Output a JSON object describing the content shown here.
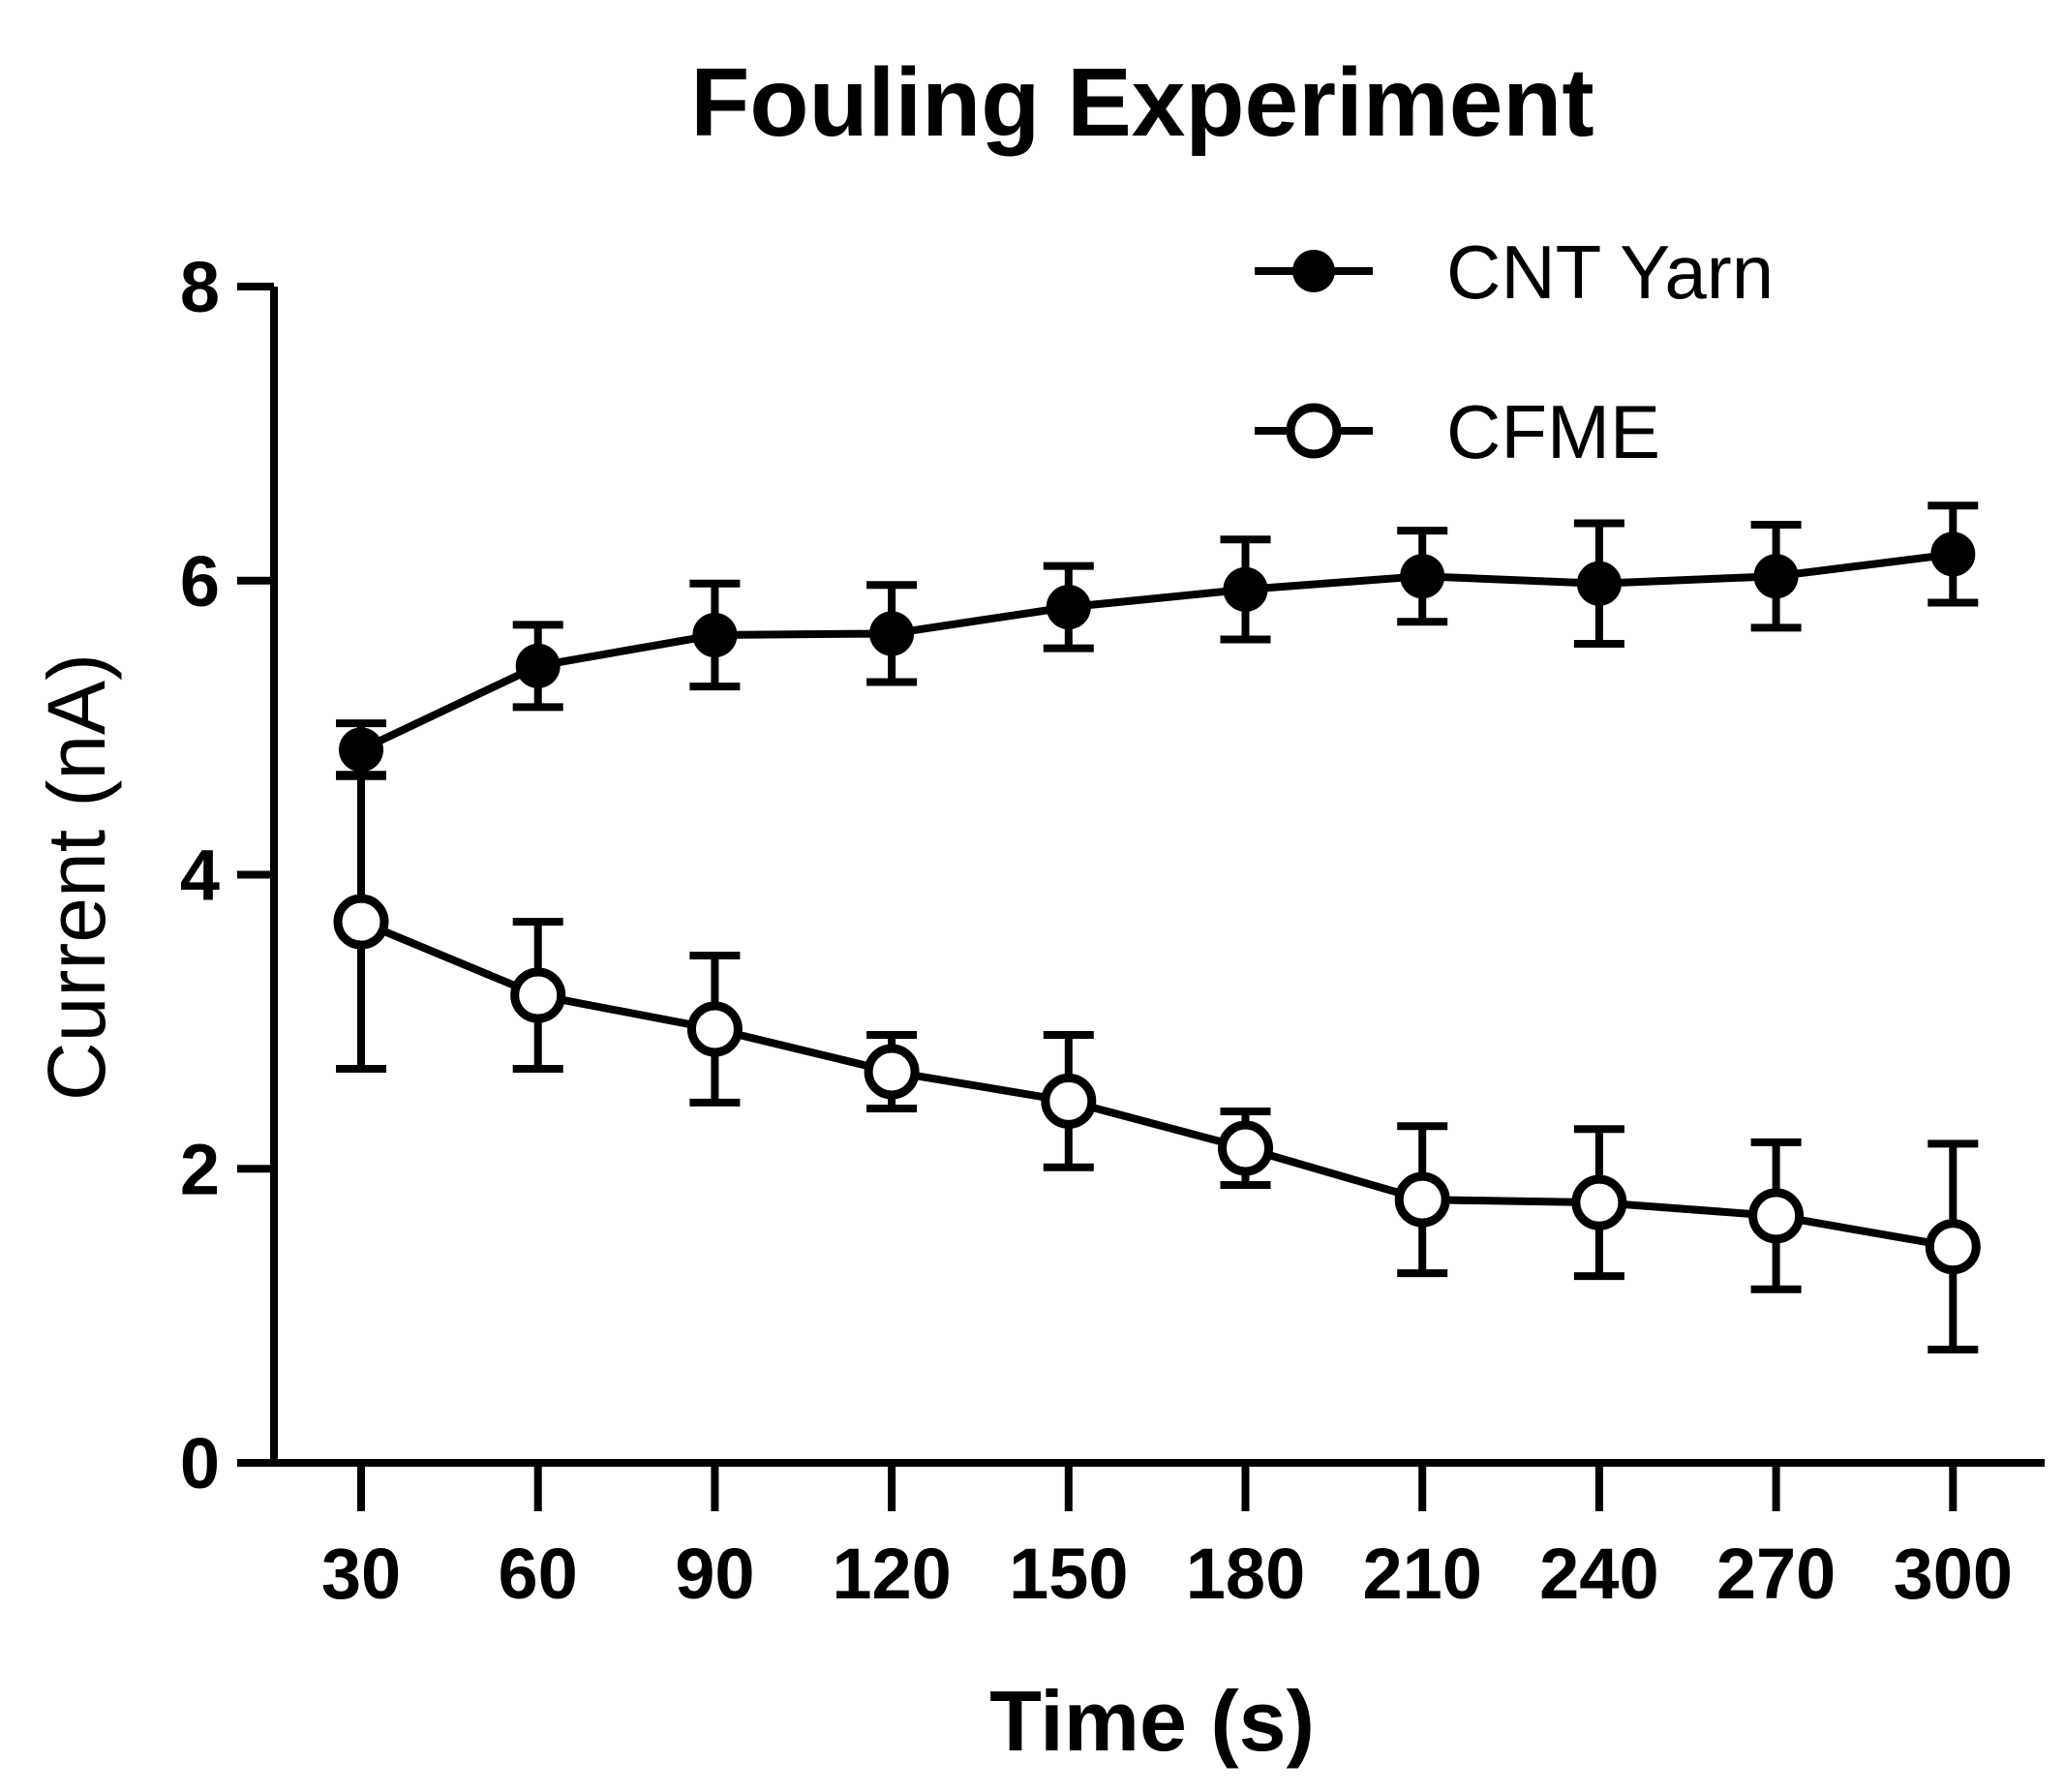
{
  "chart_data": {
    "type": "line",
    "title": "Fouling Experiment",
    "xlabel": "Time (s)",
    "ylabel": "Current (nA)",
    "categories": [
      30,
      60,
      90,
      120,
      150,
      180,
      210,
      240,
      270,
      300
    ],
    "ylim": [
      0,
      8
    ],
    "yticks": [
      0,
      2,
      4,
      6,
      8
    ],
    "grid": false,
    "legend_position": "top-right",
    "series": [
      {
        "name": "CNT Yarn",
        "marker": "filled-circle",
        "values": [
          4.85,
          5.42,
          5.63,
          5.64,
          5.82,
          5.94,
          6.03,
          5.98,
          6.03,
          6.18
        ],
        "errors": [
          0.18,
          0.28,
          0.35,
          0.33,
          0.28,
          0.34,
          0.31,
          0.41,
          0.35,
          0.33
        ]
      },
      {
        "name": "CFME",
        "marker": "open-circle",
        "values": [
          3.68,
          3.18,
          2.95,
          2.66,
          2.46,
          2.14,
          1.79,
          1.77,
          1.68,
          1.47
        ],
        "errors": [
          1.0,
          0.5,
          0.5,
          0.25,
          0.45,
          0.25,
          0.5,
          0.5,
          0.5,
          0.7
        ]
      }
    ]
  }
}
